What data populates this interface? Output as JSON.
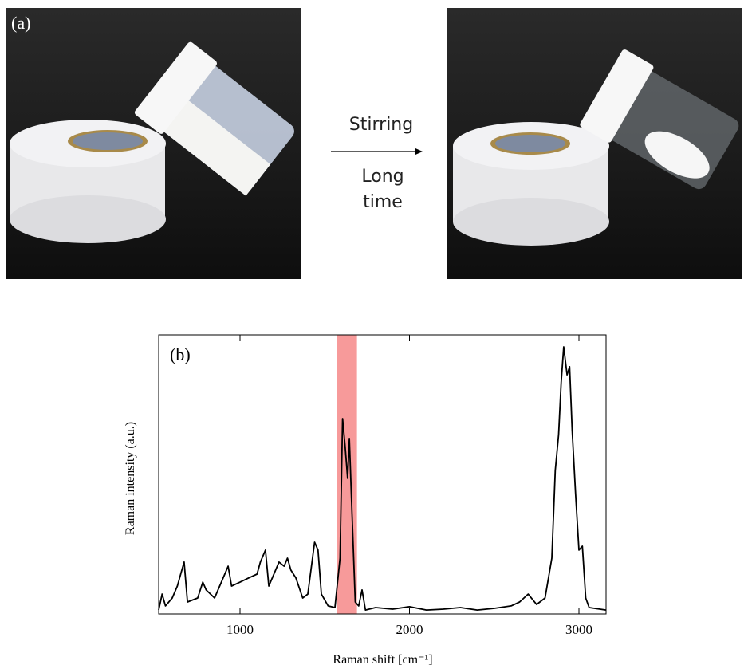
{
  "panel_a": {
    "label": "(a)"
  },
  "arrow": {
    "top": "Stirring",
    "bottom": [
      "Long",
      "time"
    ]
  },
  "chart_data": {
    "type": "line",
    "panel_label": "(b)",
    "xlabel": "Raman shift [cm⁻¹]",
    "ylabel": "Raman intensity (a.u.)",
    "color": "#000000",
    "x": [
      520,
      540,
      560,
      600,
      630,
      650,
      670,
      690,
      750,
      780,
      800,
      850,
      900,
      930,
      950,
      1000,
      1050,
      1100,
      1120,
      1150,
      1170,
      1200,
      1230,
      1260,
      1280,
      1300,
      1330,
      1370,
      1400,
      1440,
      1460,
      1480,
      1520,
      1560,
      1590,
      1605,
      1620,
      1635,
      1645,
      1660,
      1680,
      1700,
      1720,
      1740,
      1800,
      1900,
      2000,
      2100,
      2200,
      2300,
      2400,
      2500,
      2600,
      2650,
      2700,
      2750,
      2800,
      2840,
      2860,
      2880,
      2895,
      2910,
      2930,
      2945,
      2960,
      2980,
      3000,
      3020,
      3040,
      3060,
      3160
    ],
    "values": [
      1.4,
      7.1,
      2.9,
      5.7,
      10,
      14.3,
      18.6,
      4.3,
      5.7,
      11.4,
      8.6,
      5.7,
      12.9,
      17.1,
      10,
      11.4,
      12.9,
      14.3,
      18.6,
      22.9,
      10,
      14.3,
      18.6,
      17.1,
      20,
      15.7,
      12.9,
      5.7,
      7.1,
      25.7,
      22.9,
      7.1,
      2.9,
      2.3,
      20,
      70,
      60,
      48.6,
      62.9,
      37.1,
      4.3,
      2.9,
      8.6,
      1.4,
      2.3,
      1.7,
      2.6,
      1.4,
      1.7,
      2.3,
      1.4,
      2,
      2.9,
      4.3,
      7.1,
      3.4,
      5.7,
      20,
      51.4,
      64.3,
      82.9,
      95.7,
      85.7,
      88.6,
      65.7,
      42.9,
      22.9,
      24.3,
      5.7,
      2.3,
      1.4
    ],
    "xlim": [
      520,
      3160
    ],
    "xticks": [
      1000,
      2000,
      3000
    ],
    "ylim": [
      0,
      100
    ],
    "highlight": {
      "xlim": [
        1570,
        1690
      ],
      "color": "#f79a9a"
    }
  }
}
